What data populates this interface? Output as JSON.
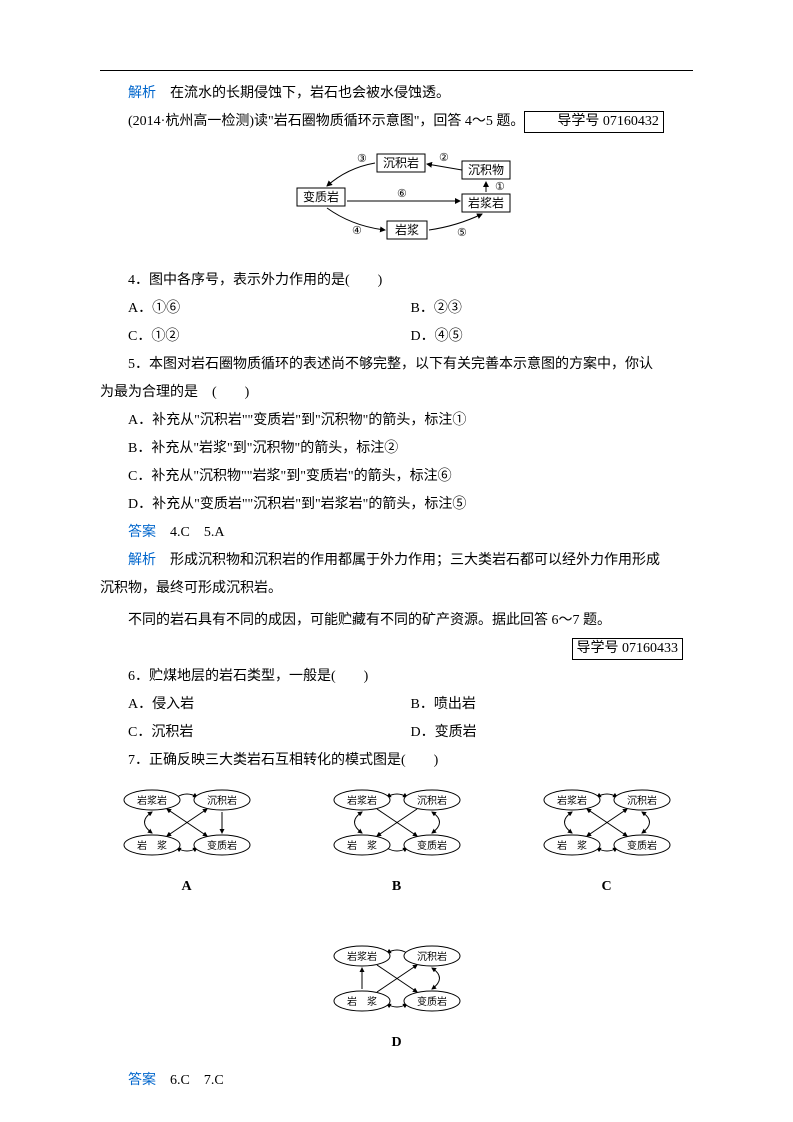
{
  "analysis1": "在流水的长期侵蚀下，岩石也会被水侵蚀透。",
  "intro1": "(2014·杭州高一检测)读\"岩石圈物质循环示意图\"，回答 4～5 题。",
  "ref1": "导学号 07160432",
  "main_diagram": {
    "nodes": {
      "n1": "沉积岩",
      "n2": "沉积物",
      "n3": "变质岩",
      "n4": "岩浆岩",
      "n5": "岩浆"
    },
    "labels": {
      "l1": "①",
      "l2": "②",
      "l3": "③",
      "l4": "④",
      "l5": "⑤",
      "l6": "⑥"
    }
  },
  "q4": {
    "stem": "4．图中各序号，表示外力作用的是(　　)",
    "A": "A．①⑥",
    "B": "B．②③",
    "C": "C．①②",
    "D": "D．④⑤"
  },
  "q5": {
    "stem_line1": "5．本图对岩石圈物质循环的表述尚不够完整，以下有关完善本示意图的方案中，你认",
    "stem_line2": "为最为合理的是　(　　)",
    "A": "A．补充从\"沉积岩\"\"变质岩\"到\"沉积物\"的箭头，标注①",
    "B": "B．补充从\"岩浆\"到\"沉积物\"的箭头，标注②",
    "C": "C．补充从\"沉积物\"\"岩浆\"到\"变质岩\"的箭头，标注⑥",
    "D": "D．补充从\"变质岩\"\"沉积岩\"到\"岩浆岩\"的箭头，标注⑤"
  },
  "answer45": "4.C　5.A",
  "analysis45_line1": "形成沉积物和沉积岩的作用都属于外力作用；三大类岩石都可以经外力作用形成",
  "analysis45_line2": "沉积物，最终可形成沉积岩。",
  "intro2": "不同的岩石具有不同的成因，可能贮藏有不同的矿产资源。据此回答 6～7 题。",
  "ref2": "导学号 07160433",
  "q6": {
    "stem": "6．贮煤地层的岩石类型，一般是(　　)",
    "A": "A．侵入岩",
    "B": "B．喷出岩",
    "C": "C．沉积岩",
    "D": "D．变质岩"
  },
  "q7": {
    "stem": "7．正确反映三大类岩石互相转化的模式图是(　　)"
  },
  "small_diagram": {
    "n1": "岩浆岩",
    "n2": "沉积岩",
    "n3": "岩　浆",
    "n4": "变质岩",
    "labels": {
      "A": "A",
      "B": "B",
      "C": "C",
      "D": "D"
    }
  },
  "answer67": "6.C　7.C",
  "label_analysis": "解析",
  "label_answer": "答案"
}
